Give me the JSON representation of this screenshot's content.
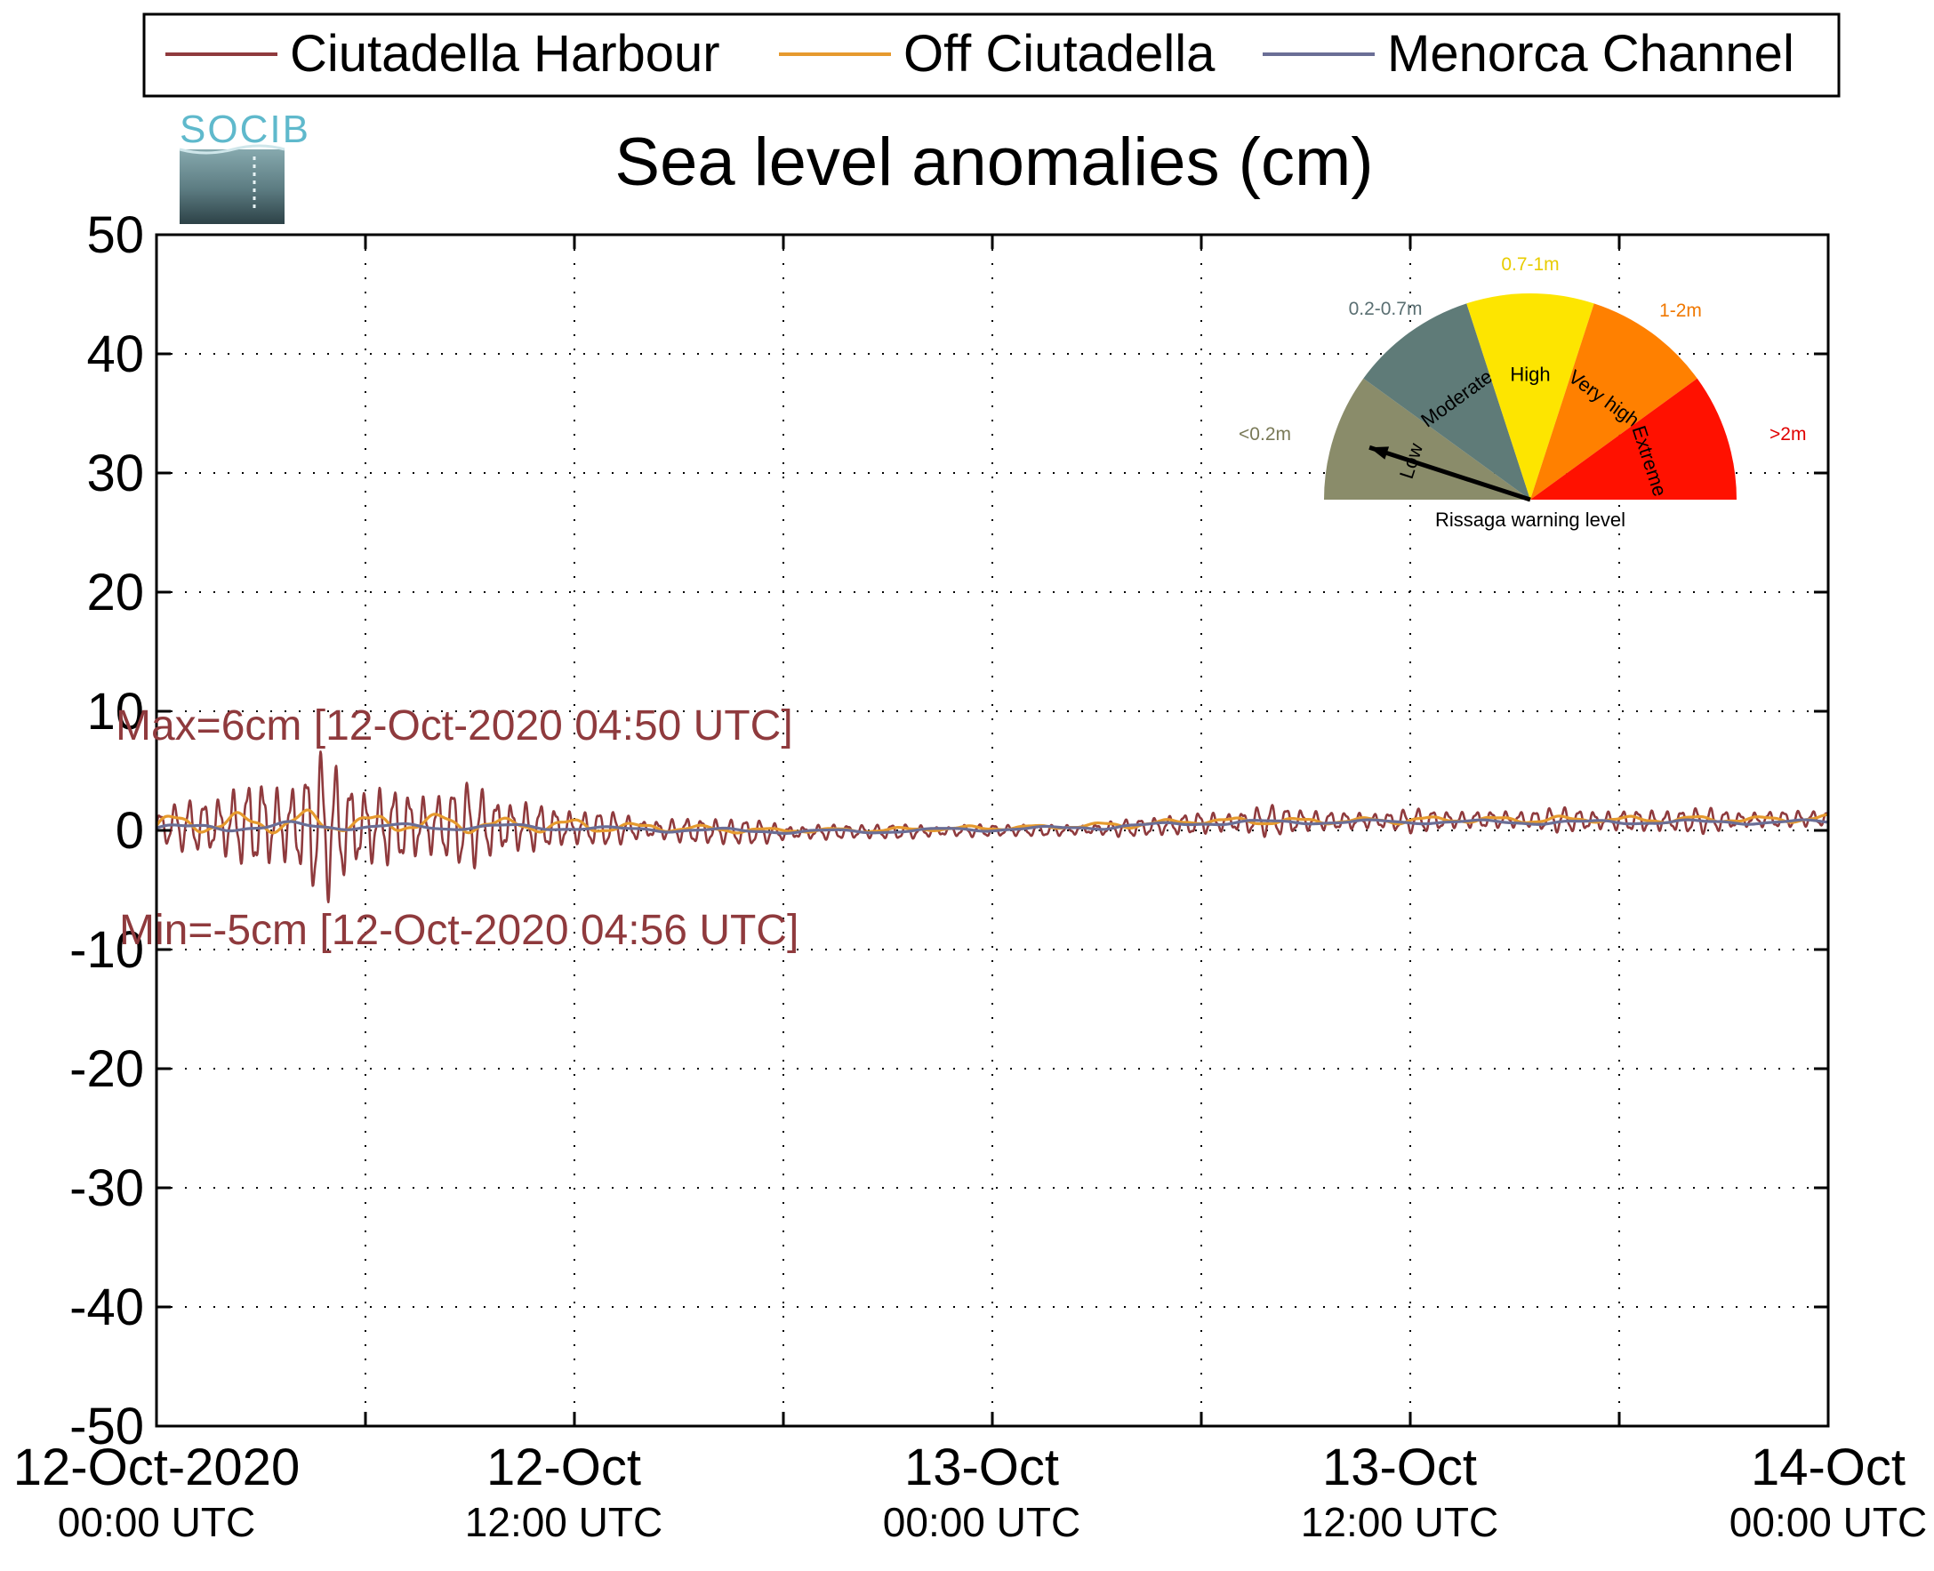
{
  "logo": {
    "text": "SOCIB"
  },
  "chart_data": {
    "type": "line",
    "title": "Sea level anomalies (cm)",
    "ylim": [
      -50,
      50
    ],
    "yticks": [
      "50",
      "40",
      "30",
      "20",
      "10",
      "0",
      "-10",
      "-20",
      "-30",
      "-40",
      "-50"
    ],
    "yticks_values": [
      50,
      40,
      30,
      20,
      10,
      0,
      -10,
      -20,
      -30,
      -40,
      -50
    ],
    "xlim": [
      "2020-10-12 00:00",
      "2020-10-14 00:00"
    ],
    "xticks": [
      {
        "line1": "12-Oct-2020",
        "line2": "00:00 UTC",
        "time": "2020-10-12 00:00"
      },
      {
        "line1": "12-Oct",
        "line2": "12:00 UTC",
        "time": "2020-10-12 12:00"
      },
      {
        "line1": "13-Oct",
        "line2": "00:00 UTC",
        "time": "2020-10-13 00:00"
      },
      {
        "line1": "13-Oct",
        "line2": "12:00 UTC",
        "time": "2020-10-13 12:00"
      },
      {
        "line1": "14-Oct",
        "line2": "00:00 UTC",
        "time": "2020-10-14 00:00"
      }
    ],
    "grid": true,
    "legend_position": "top",
    "series": [
      {
        "name": "Ciutadella Harbour",
        "color": "#8f3a3d",
        "note": "approximate envelope read from plot",
        "t_hours": [
          0,
          2,
          3,
          4,
          4.83,
          5,
          6,
          7,
          8,
          9,
          10,
          12,
          14,
          16,
          18,
          20,
          22,
          24,
          26,
          28,
          30,
          32,
          34,
          36,
          38,
          40,
          42,
          44,
          46,
          48
        ],
        "amplitude_cm": [
          1.2,
          3.0,
          4.5,
          4.0,
          5.8,
          5.2,
          3.8,
          3.6,
          3.0,
          3.2,
          2.8,
          1.6,
          1.0,
          1.2,
          0.8,
          0.6,
          0.6,
          0.5,
          0.5,
          0.7,
          1.0,
          1.2,
          0.8,
          0.9,
          0.8,
          0.9,
          1.0,
          1.0,
          0.8,
          0.7
        ],
        "baseline_cm": [
          0.3,
          0.4,
          0.5,
          0.4,
          0.3,
          0.2,
          0.3,
          0.3,
          0.4,
          0.4,
          0.3,
          0.2,
          0.1,
          -0.1,
          -0.2,
          -0.1,
          -0.1,
          0.0,
          0.0,
          0.2,
          0.6,
          0.8,
          0.8,
          0.8,
          0.9,
          0.9,
          0.8,
          0.8,
          0.9,
          1.0
        ]
      },
      {
        "name": "Off Ciutadella",
        "color": "#e69a2e",
        "t_hours": [
          0,
          2,
          4,
          6,
          8,
          10,
          12,
          14,
          16,
          18,
          20,
          22,
          24,
          26,
          28,
          30,
          32,
          34,
          36,
          38,
          40,
          42,
          44,
          46,
          48
        ],
        "amplitude_cm": [
          0.8,
          1.0,
          1.0,
          0.9,
          0.8,
          0.7,
          0.6,
          0.4,
          0.3,
          0.2,
          0.2,
          0.2,
          0.2,
          0.2,
          0.3,
          0.3,
          0.3,
          0.3,
          0.3,
          0.3,
          0.3,
          0.3,
          0.3,
          0.3,
          0.3
        ],
        "baseline_cm": [
          0.4,
          0.6,
          0.6,
          0.6,
          0.6,
          0.5,
          0.4,
          0.3,
          0.1,
          0.0,
          0.0,
          0.1,
          0.2,
          0.3,
          0.5,
          0.8,
          0.8,
          0.8,
          0.9,
          0.9,
          0.9,
          0.9,
          0.9,
          0.9,
          1.0
        ]
      },
      {
        "name": "Menorca Channel",
        "color": "#6a6e96",
        "t_hours": [
          0,
          2,
          4,
          6,
          8,
          10,
          12,
          14,
          16,
          18,
          20,
          22,
          24,
          26,
          28,
          30,
          32,
          34,
          36,
          38,
          40,
          42,
          44,
          46,
          48
        ],
        "amplitude_cm": [
          0.3,
          0.4,
          0.4,
          0.3,
          0.3,
          0.3,
          0.2,
          0.2,
          0.2,
          0.2,
          0.2,
          0.2,
          0.2,
          0.2,
          0.2,
          0.2,
          0.2,
          0.2,
          0.2,
          0.2,
          0.2,
          0.2,
          0.2,
          0.2,
          0.2
        ],
        "baseline_cm": [
          0.2,
          0.3,
          0.3,
          0.3,
          0.3,
          0.3,
          0.2,
          0.1,
          0.0,
          -0.1,
          -0.1,
          0.0,
          0.1,
          0.2,
          0.4,
          0.6,
          0.7,
          0.7,
          0.7,
          0.7,
          0.7,
          0.7,
          0.7,
          0.7,
          0.7
        ]
      }
    ],
    "annotations": {
      "max": "Max=6cm [12-Oct-2020 04:50 UTC]",
      "min": "Min=-5cm [12-Oct-2020 04:56 UTC]",
      "color": "#8f3a3d"
    },
    "gauge": {
      "title": "Rissaga warning level",
      "needle_level": "Low",
      "sectors": [
        {
          "label": "Low",
          "range": "<0.2m",
          "color": "#8a8c6a",
          "range_color": "#7a7a58"
        },
        {
          "label": "Moderate",
          "range": "0.2-0.7m",
          "color": "#5f7b78",
          "range_color": "#5a6f72"
        },
        {
          "label": "High",
          "range": "0.7-1m",
          "color": "#fde500",
          "range_color": "#e8cc00"
        },
        {
          "label": "Very high",
          "range": "1-2m",
          "color": "#ff8000",
          "range_color": "#f07800"
        },
        {
          "label": "Extreme",
          "range": ">2m",
          "color": "#ff1100",
          "range_color": "#e00000"
        }
      ]
    }
  }
}
